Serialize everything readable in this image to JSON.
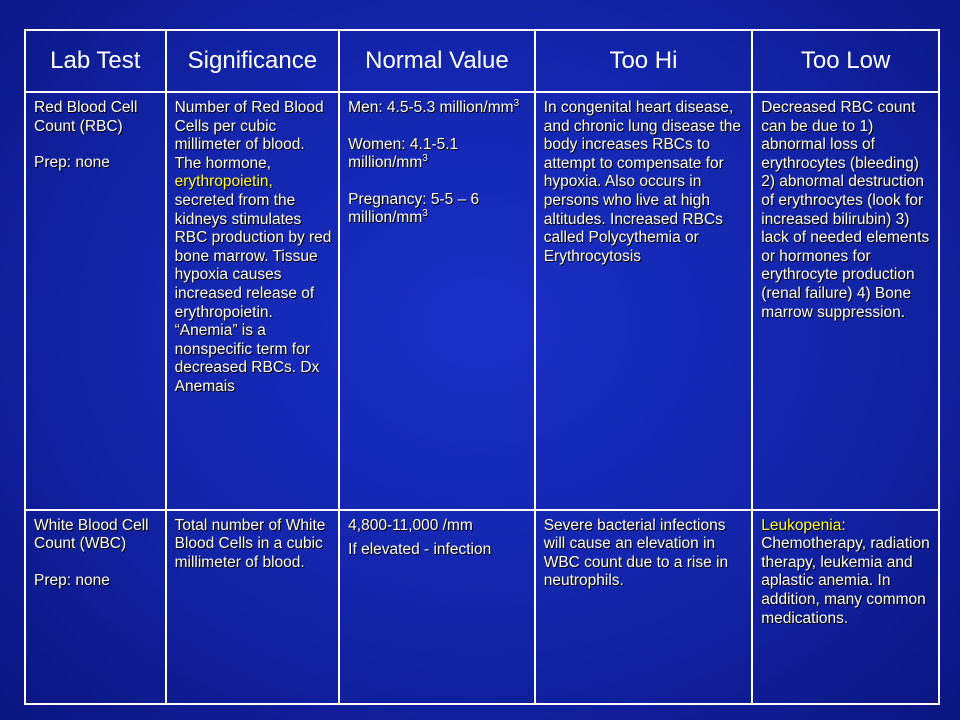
{
  "headers": [
    "Lab Test",
    "Significance",
    "Normal Value",
    "Too Hi",
    "Too Low"
  ],
  "rbc": {
    "test_line1": "Red Blood Cell Count (RBC)",
    "test_line2": "Prep: none",
    "significance_part1": "Number of Red Blood Cells per cubic millimeter of blood. The hormone, ",
    "significance_highlight": "erythropoietin,",
    "significance_part2": " secreted from the kidneys stimulates RBC production by red bone marrow. Tissue hypoxia causes increased release of erythropoietin. “Anemia” is a nonspecific term for decreased RBCs. Dx Anemais",
    "normal_men": "Men: 4.5-5.3 million/mm",
    "normal_women": "Women: 4.1-5.1 million/mm",
    "normal_pregnancy": "Pregnancy: 5-5 – 6 million/mm",
    "normal_sup": "3",
    "too_hi": "In congenital heart disease, and chronic lung disease the body increases RBCs to attempt to compensate for hypoxia. Also occurs in persons who live at high altitudes. Increased RBCs called Polycythemia or Erythrocytosis",
    "too_low": "Decreased RBC count can be due to 1) abnormal loss of erythrocytes (bleeding) 2) abnormal destruction of erythrocytes (look for increased bilirubin) 3) lack of needed elements or hormones for erythrocyte production (renal failure) 4) Bone marrow suppression."
  },
  "wbc": {
    "test_line1": "White Blood Cell Count (WBC)",
    "test_line2": "Prep: none",
    "significance": "Total number of White Blood Cells in a cubic millimeter of blood.",
    "normal_line1": "4,800-11,000 /mm",
    "normal_line2": "If elevated - infection",
    "too_hi": "Severe bacterial infections will cause an elevation in WBC count due to a rise in neutrophils.",
    "too_low_highlight": "Leukopenia",
    "too_low_rest": ": Chemotherapy, radiation therapy, leukemia  and aplastic anemia. In addition, many common medications."
  },
  "colors": {
    "background": "#1224a8",
    "text": "#ffffff",
    "highlight": "#ffff33",
    "border": "#ffffff"
  }
}
